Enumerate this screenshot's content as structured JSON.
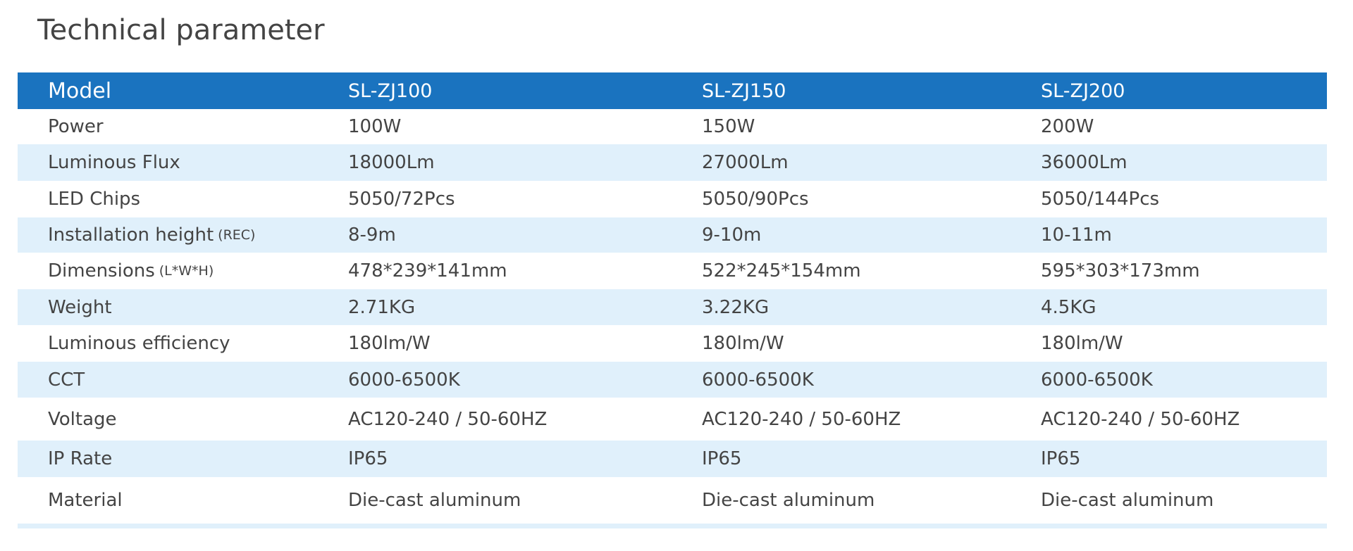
{
  "header": {
    "title": "Technical parameter"
  },
  "table": {
    "columns": [
      "Model",
      "SL-ZJ100",
      "SL-ZJ150",
      "SL-ZJ200"
    ],
    "rows": [
      {
        "label": "Power",
        "values": [
          "100W",
          "150W",
          "200W"
        ]
      },
      {
        "label": "Luminous Flux",
        "values": [
          "18000Lm",
          "27000Lm",
          "36000Lm"
        ]
      },
      {
        "label": "LED Chips",
        "values": [
          "5050/72Pcs",
          "5050/90Pcs",
          "5050/144Pcs"
        ]
      },
      {
        "label": "Installation height",
        "note": "(REC)",
        "values": [
          "8-9m",
          "9-10m",
          "10-11m"
        ]
      },
      {
        "label": "Dimensions",
        "note": "(L*W*H)",
        "values": [
          "478*239*141mm",
          "522*245*154mm",
          "595*303*173mm"
        ]
      },
      {
        "label": "Weight",
        "values": [
          "2.71KG",
          "3.22KG",
          "4.5KG"
        ]
      },
      {
        "label": "Luminous efficiency",
        "values": [
          "180lm/W",
          "180lm/W",
          "180lm/W"
        ]
      },
      {
        "label": "CCT",
        "values": [
          "6000-6500K",
          "6000-6500K",
          "6000-6500K"
        ]
      },
      {
        "label": "Voltage",
        "values": [
          "AC120-240 / 50-60HZ",
          "AC120-240 / 50-60HZ",
          "AC120-240 / 50-60HZ"
        ]
      },
      {
        "label": "IP Rate",
        "values": [
          "IP65",
          "IP65",
          "IP65"
        ]
      },
      {
        "label": "Material",
        "values": [
          "Die-cast aluminum",
          "Die-cast aluminum",
          "Die-cast aluminum"
        ]
      }
    ]
  }
}
